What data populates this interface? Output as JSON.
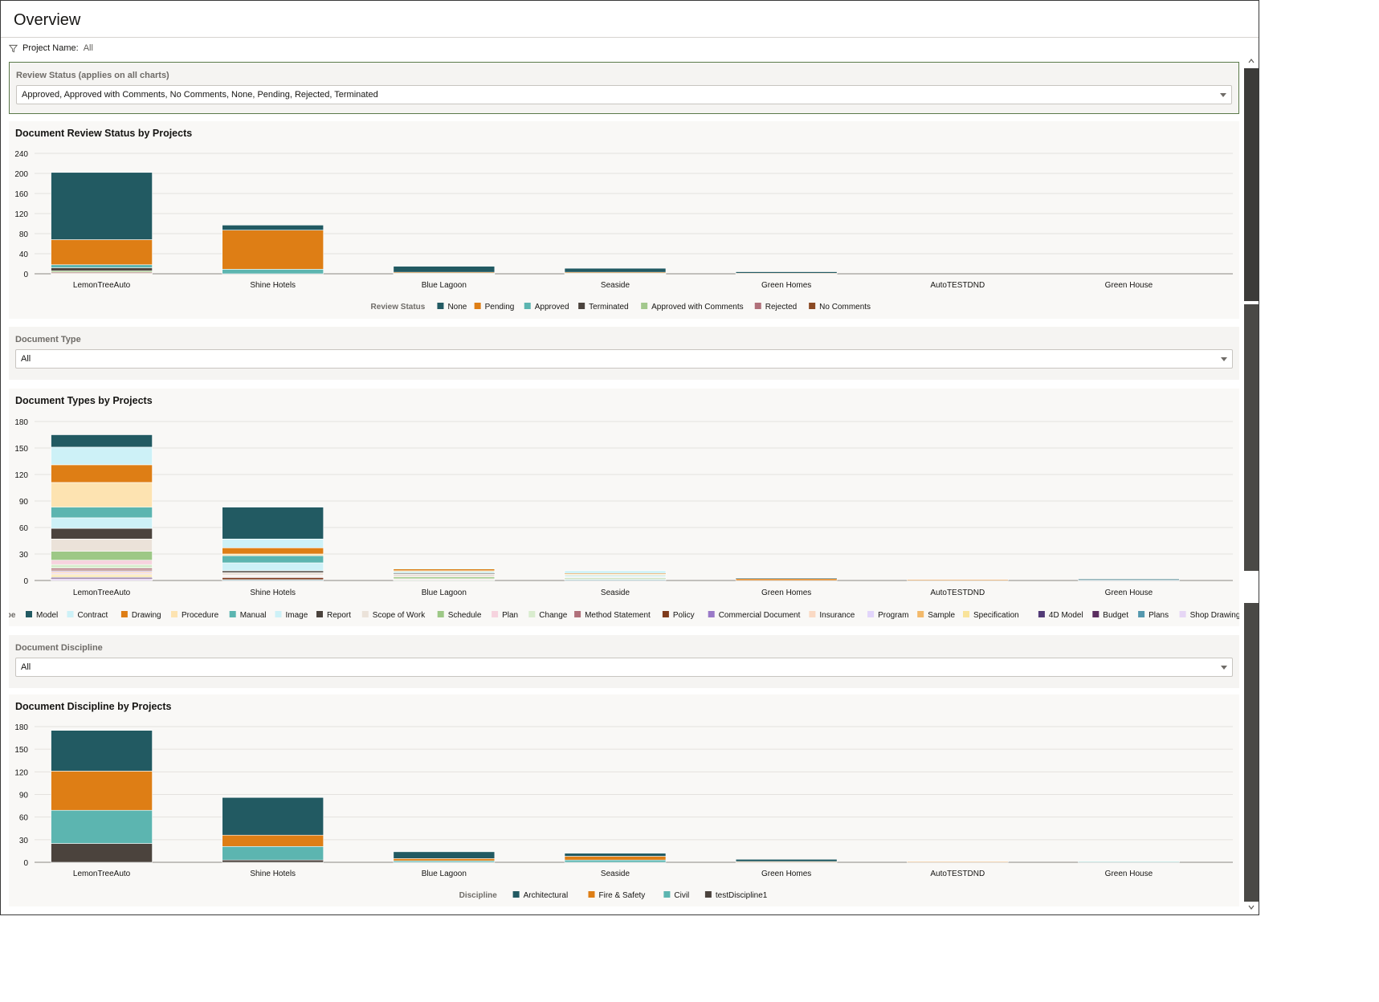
{
  "page": {
    "title": "Overview"
  },
  "filter_bar": {
    "label": "Project Name:",
    "value": "All",
    "icon": "filter-icon"
  },
  "review_filter": {
    "label": "Review Status (applies on all charts)",
    "value": "Approved, Approved with Comments, No Comments, None, Pending, Rejected, Terminated"
  },
  "type_filter": {
    "label": "Document Type",
    "value": "All"
  },
  "discipline_filter": {
    "label": "Document Discipline",
    "value": "All"
  },
  "chart_data": [
    {
      "type": "bar",
      "stacked": true,
      "title": "Document Review Status by Projects",
      "legend_title": "Review Status",
      "legend_position": "bottom",
      "categories": [
        "LemonTreeAuto",
        "Shine Hotels",
        "Blue Lagoon",
        "Seaside",
        "Green Homes",
        "AutoTESTDND",
        "Green House"
      ],
      "ylim": [
        0,
        240
      ],
      "yticks": [
        0,
        40,
        80,
        120,
        160,
        200,
        240
      ],
      "series": [
        {
          "name": "No Comments",
          "color": "#8b4a24",
          "values": [
            1,
            0,
            0,
            0,
            0,
            0,
            0
          ]
        },
        {
          "name": "Rejected",
          "color": "#b0707a",
          "values": [
            2,
            0,
            0,
            0,
            0,
            0,
            0
          ]
        },
        {
          "name": "Approved with Comments",
          "color": "#a3c88d",
          "values": [
            3,
            0,
            0,
            0,
            0,
            0,
            0
          ]
        },
        {
          "name": "Terminated",
          "color": "#4b433d",
          "values": [
            6,
            0,
            0,
            0,
            0,
            0,
            0
          ]
        },
        {
          "name": "Approved",
          "color": "#5cb5b0",
          "values": [
            6,
            9,
            1,
            1,
            0,
            0,
            0
          ]
        },
        {
          "name": "Pending",
          "color": "#de7e15",
          "values": [
            50,
            78,
            2,
            2,
            1,
            0,
            0
          ]
        },
        {
          "name": "None",
          "color": "#225a62",
          "values": [
            134,
            10,
            12,
            8,
            3,
            0,
            0
          ]
        }
      ]
    },
    {
      "type": "bar",
      "stacked": true,
      "title": "Document Types by Projects",
      "legend_title": "Type",
      "legend_position": "bottom",
      "categories": [
        "LemonTreeAuto",
        "Shine Hotels",
        "Blue Lagoon",
        "Seaside",
        "Green Homes",
        "AutoTESTDND",
        "Green House"
      ],
      "ylim": [
        0,
        180
      ],
      "yticks": [
        0,
        30,
        60,
        90,
        120,
        150,
        180
      ],
      "series": [
        {
          "name": "Shop Drawing",
          "color": "#e6d6f5",
          "values": [
            2,
            0,
            0,
            0,
            0,
            0,
            0
          ]
        },
        {
          "name": "Plans",
          "color": "#5598ae",
          "values": [
            0,
            1,
            0,
            1,
            0,
            0,
            1
          ]
        },
        {
          "name": "Budget",
          "color": "#5b2e5f",
          "values": [
            1,
            0,
            0,
            0,
            0,
            0,
            0
          ]
        },
        {
          "name": "4D Model",
          "color": "#533b77",
          "values": [
            1,
            0,
            0,
            0,
            0,
            0,
            0
          ]
        },
        {
          "name": "Specification",
          "color": "#f9e39a",
          "values": [
            2,
            0,
            0,
            0,
            0,
            0,
            0
          ]
        },
        {
          "name": "Sample",
          "color": "#f3b96a",
          "values": [
            1,
            0,
            0,
            0,
            0,
            0,
            0
          ]
        },
        {
          "name": "Program",
          "color": "#e2d5fb",
          "values": [
            1,
            0,
            0,
            0,
            0,
            0,
            0
          ]
        },
        {
          "name": "Insurance",
          "color": "#fad9c3",
          "values": [
            2,
            0,
            0,
            0,
            0,
            0,
            0
          ]
        },
        {
          "name": "Commercial Document",
          "color": "#9a79c8",
          "values": [
            1,
            0,
            0,
            0,
            0,
            0,
            0
          ]
        },
        {
          "name": "Policy",
          "color": "#7f3b1c",
          "values": [
            1,
            2,
            0,
            0,
            0,
            0,
            0
          ]
        },
        {
          "name": "Method Statement",
          "color": "#b0707a",
          "values": [
            2,
            1,
            0,
            0,
            0,
            0,
            0
          ]
        },
        {
          "name": "Change",
          "color": "#d9ecce",
          "values": [
            4,
            1,
            1,
            1,
            0,
            0,
            0
          ]
        },
        {
          "name": "Plan",
          "color": "#f6d3de",
          "values": [
            5,
            1,
            1,
            0,
            0,
            0,
            0
          ]
        },
        {
          "name": "Schedule",
          "color": "#9dc886",
          "values": [
            10,
            0,
            2,
            1,
            0,
            0,
            0
          ]
        },
        {
          "name": "Scope of Work",
          "color": "#ebe2d9",
          "values": [
            14,
            3,
            3,
            1,
            0,
            0,
            0
          ]
        },
        {
          "name": "Report",
          "color": "#4b433d",
          "values": [
            12,
            2,
            1,
            0,
            0,
            0,
            0
          ]
        },
        {
          "name": "Image",
          "color": "#cdf1f7",
          "values": [
            12,
            9,
            1,
            1,
            0,
            0,
            0
          ]
        },
        {
          "name": "Manual",
          "color": "#5cb5b0",
          "values": [
            12,
            8,
            1,
            1,
            0,
            0,
            0
          ]
        },
        {
          "name": "Procedure",
          "color": "#fde3b1",
          "values": [
            28,
            2,
            1,
            1,
            0,
            0,
            0
          ]
        },
        {
          "name": "Drawing",
          "color": "#de7e15",
          "values": [
            20,
            7,
            2,
            1,
            2,
            1,
            0
          ]
        },
        {
          "name": "Contract",
          "color": "#cdf1f7",
          "values": [
            20,
            10,
            1,
            3,
            0,
            0,
            0
          ]
        },
        {
          "name": "Model",
          "color": "#225a62",
          "values": [
            14,
            36,
            0,
            0,
            1,
            0,
            1
          ]
        }
      ]
    },
    {
      "type": "bar",
      "stacked": true,
      "title": "Document Discipline by Projects",
      "legend_title": "Discipline",
      "legend_position": "bottom",
      "categories": [
        "LemonTreeAuto",
        "Shine Hotels",
        "Blue Lagoon",
        "Seaside",
        "Green Homes",
        "AutoTESTDND",
        "Green House"
      ],
      "ylim": [
        0,
        180
      ],
      "yticks": [
        0,
        30,
        60,
        90,
        120,
        150,
        180
      ],
      "series": [
        {
          "name": "testDiscipline1",
          "color": "#4b433d",
          "values": [
            25,
            3,
            0,
            0,
            0,
            0,
            0
          ]
        },
        {
          "name": "Civil",
          "color": "#5cb5b0",
          "values": [
            44,
            18,
            2,
            3,
            0,
            0,
            1
          ]
        },
        {
          "name": "Fire & Safety",
          "color": "#de7e15",
          "values": [
            52,
            15,
            3,
            5,
            1,
            1,
            0
          ]
        },
        {
          "name": "Architectural",
          "color": "#225a62",
          "values": [
            54,
            50,
            9,
            4,
            3,
            0,
            0
          ]
        }
      ]
    }
  ]
}
